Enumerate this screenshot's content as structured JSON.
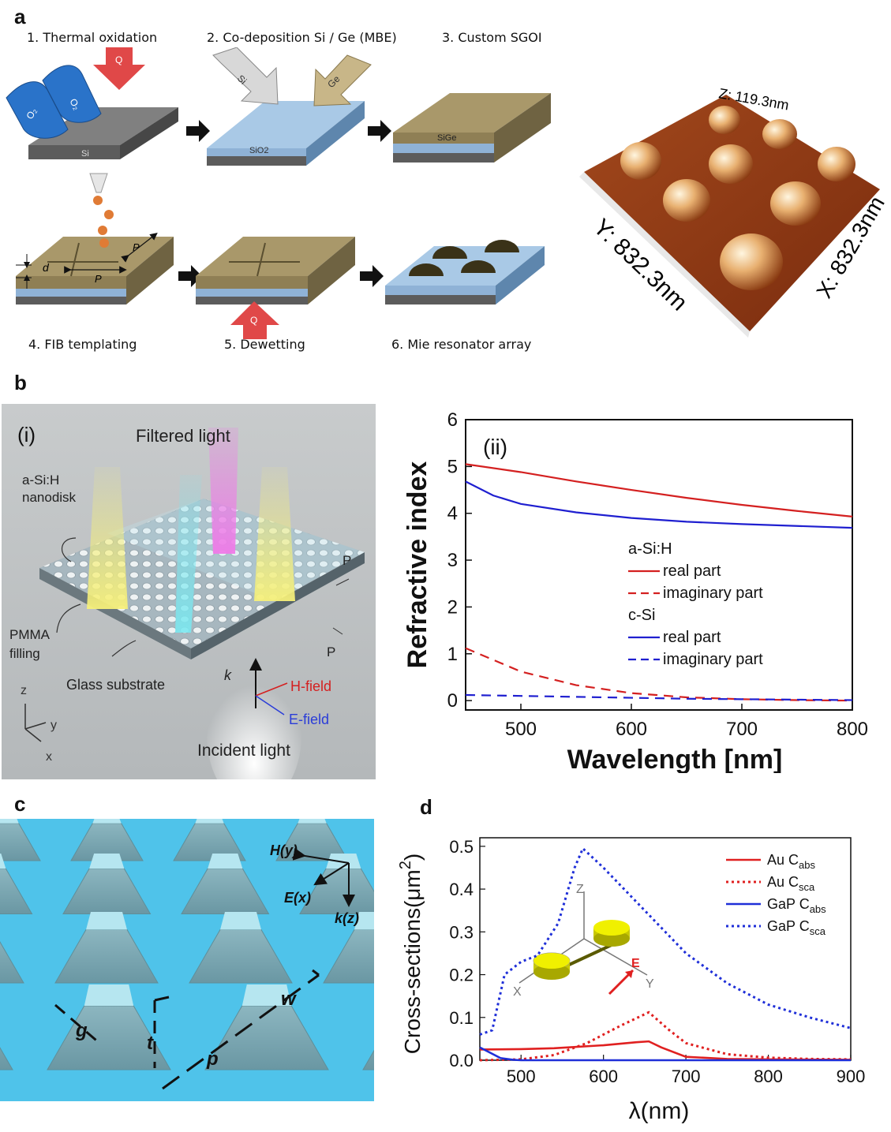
{
  "panels": {
    "a": "a",
    "b": "b",
    "c": "c",
    "d": "d"
  },
  "panel_a": {
    "steps": [
      "1. Thermal oxidation",
      "2. Co-deposition Si / Ge (MBE)",
      "3. Custom SGOI",
      "4. FIB templating",
      "5. Dewetting",
      "6. Mie resonator array"
    ],
    "labels": {
      "o2": "O₂",
      "q": "Q",
      "si": "Si",
      "ge": "Ge",
      "sio2": "SiO2",
      "sige": "SiGe",
      "d": "d",
      "p": "P"
    },
    "afm": {
      "z": "Z: 119.3nm",
      "y": "Y: 832.3nm",
      "x": "X: 832.3nm"
    }
  },
  "panel_b_i": {
    "tag": "(i)",
    "filtered": "Filtered light",
    "nanodisk_1": "a-Si:H",
    "nanodisk_2": "nanodisk",
    "pmma_1": "PMMA",
    "pmma_2": "filling",
    "glass": "Glass substrate",
    "p": "P",
    "k": "k",
    "hfield": "H-field",
    "efield": "E-field",
    "incident": "Incident light",
    "z": "z",
    "y": "y",
    "x": "x"
  },
  "panel_c": {
    "h": "H(y)",
    "e": "E(x)",
    "k": "k(z)",
    "g": "g",
    "t": "t",
    "p": "p",
    "w": "w"
  },
  "chart_data": [
    {
      "type": "line",
      "tag": "(ii)",
      "xlabel": "Wavelength [nm]",
      "ylabel": "Refractive index",
      "xlim": [
        450,
        800
      ],
      "ylim": [
        -0.2,
        6
      ],
      "xticks": [
        500,
        600,
        700,
        800
      ],
      "yticks": [
        0,
        1,
        2,
        3,
        4,
        5,
        6
      ],
      "legend_groups": [
        {
          "title": "a-Si:H",
          "color": "#d42020",
          "entries": [
            {
              "name": "real part",
              "style": "solid"
            },
            {
              "name": "imaginary part",
              "style": "dashed"
            }
          ]
        },
        {
          "title": "c-Si",
          "color": "#1f1fd0",
          "entries": [
            {
              "name": "real part",
              "style": "solid"
            },
            {
              "name": "imaginary part",
              "style": "dashed"
            }
          ]
        }
      ],
      "series": [
        {
          "color": "#d42020",
          "style": "solid",
          "x": [
            450,
            500,
            550,
            600,
            650,
            700,
            750,
            800
          ],
          "y": [
            5.05,
            4.88,
            4.68,
            4.5,
            4.33,
            4.18,
            4.05,
            3.93
          ]
        },
        {
          "color": "#d42020",
          "style": "dashed",
          "x": [
            450,
            500,
            550,
            600,
            650,
            700,
            750,
            800
          ],
          "y": [
            1.12,
            0.62,
            0.33,
            0.16,
            0.07,
            0.03,
            0.01,
            0.0
          ]
        },
        {
          "color": "#1f1fd0",
          "style": "solid",
          "x": [
            450,
            475,
            500,
            550,
            600,
            650,
            700,
            750,
            800
          ],
          "y": [
            4.68,
            4.38,
            4.2,
            4.02,
            3.9,
            3.82,
            3.77,
            3.73,
            3.69
          ]
        },
        {
          "color": "#1f1fd0",
          "style": "dashed",
          "x": [
            450,
            500,
            550,
            600,
            650,
            700,
            750,
            800
          ],
          "y": [
            0.12,
            0.1,
            0.08,
            0.06,
            0.04,
            0.03,
            0.02,
            0.01
          ]
        }
      ]
    },
    {
      "type": "line",
      "xlabel": "λ(nm)",
      "ylabel": "Cross-sections(μm",
      "ylabel_sup": "2",
      "ylabel_close": ")",
      "xlim": [
        450,
        900
      ],
      "ylim": [
        0,
        0.52
      ],
      "xticks": [
        500,
        600,
        700,
        800,
        900
      ],
      "yticks": [
        0.0,
        0.1,
        0.2,
        0.3,
        0.4,
        0.5
      ],
      "ytick_labels": [
        "0.0",
        "0.1",
        "0.2",
        "0.3",
        "0.4",
        "0.5"
      ],
      "inset": {
        "z": "Z",
        "x": "X",
        "y": "Y",
        "e": "E"
      },
      "series": [
        {
          "name": "Au C",
          "sub": "abs",
          "color": "#e02020",
          "style": "solid",
          "x": [
            450,
            500,
            540,
            600,
            640,
            655,
            670,
            700,
            750,
            800,
            900
          ],
          "y": [
            0.025,
            0.026,
            0.028,
            0.035,
            0.042,
            0.044,
            0.03,
            0.008,
            0.003,
            0.002,
            0.001
          ]
        },
        {
          "name": "Au C",
          "sub": "sca",
          "color": "#e02020",
          "style": "dotted",
          "x": [
            450,
            500,
            540,
            580,
            620,
            655,
            680,
            700,
            750,
            800,
            850,
            900
          ],
          "y": [
            0.0,
            0.002,
            0.012,
            0.04,
            0.08,
            0.112,
            0.07,
            0.04,
            0.014,
            0.006,
            0.003,
            0.002
          ]
        },
        {
          "name": "GaP C",
          "sub": "abs",
          "color": "#1f2fd8",
          "style": "solid",
          "x": [
            450,
            460,
            475,
            490,
            500,
            600,
            700,
            800,
            900
          ],
          "y": [
            0.03,
            0.02,
            0.005,
            0.001,
            0.0,
            0.0,
            0.0,
            0.0,
            0.0
          ]
        },
        {
          "name": "GaP C",
          "sub": "sca",
          "color": "#1f2fd8",
          "style": "dotted",
          "x": [
            450,
            465,
            480,
            500,
            520,
            545,
            565,
            575,
            600,
            630,
            650,
            680,
            700,
            750,
            800,
            850,
            900
          ],
          "y": [
            0.06,
            0.07,
            0.2,
            0.23,
            0.245,
            0.32,
            0.45,
            0.495,
            0.45,
            0.39,
            0.35,
            0.29,
            0.25,
            0.18,
            0.13,
            0.1,
            0.075
          ]
        }
      ]
    }
  ]
}
